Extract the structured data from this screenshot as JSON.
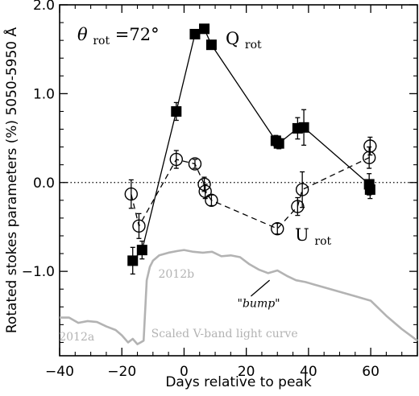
{
  "chart_data": {
    "type": "scatter",
    "xlabel": "Days relative to peak",
    "ylabel": "Rotated stokes parameters (%) 5050-5950 Å",
    "xlim": [
      -40,
      75
    ],
    "ylim": [
      -1.95,
      2.0
    ],
    "x_ticks": [
      "-40",
      "-20",
      "0",
      "20",
      "40",
      "60"
    ],
    "y_ticks": [
      "2.0",
      "1.0",
      "0.0",
      "-1.0"
    ],
    "theta_label": {
      "symbol": "θ",
      "subscript": "rot",
      "value": "=72°"
    },
    "zero_line": {
      "y": 0,
      "style": "dotted"
    },
    "series": [
      {
        "name": "Q",
        "subscript": "rot",
        "marker": "filled-square",
        "line": "solid",
        "color": "#000000",
        "points": [
          {
            "x": -16.5,
            "y": -0.88,
            "err": 0.15
          },
          {
            "x": -13.5,
            "y": -0.76,
            "err": 0.1
          },
          {
            "x": -2.5,
            "y": 0.8,
            "err": 0.1
          },
          {
            "x": 3.5,
            "y": 1.67,
            "err": 0.04
          },
          {
            "x": 6.5,
            "y": 1.73,
            "err": 0.04
          },
          {
            "x": 8.8,
            "y": 1.55,
            "err": 0.04
          },
          {
            "x": 29.5,
            "y": 0.47,
            "err": 0.06
          },
          {
            "x": 30.5,
            "y": 0.44,
            "err": 0.06
          },
          {
            "x": 36.5,
            "y": 0.61,
            "err": 0.12
          },
          {
            "x": 38.5,
            "y": 0.62,
            "err": 0.2
          },
          {
            "x": 59.5,
            "y": -0.02,
            "err": 0.12
          },
          {
            "x": 59.8,
            "y": -0.08,
            "err": 0.1
          }
        ]
      },
      {
        "name": "U",
        "subscript": "rot",
        "marker": "open-circle",
        "line": "dashed",
        "color": "#000000",
        "points": [
          {
            "x": -17.0,
            "y": -0.13,
            "err": 0.16
          },
          {
            "x": -14.5,
            "y": -0.49,
            "err": 0.14
          },
          {
            "x": -2.5,
            "y": 0.26,
            "err": 0.1
          },
          {
            "x": 3.5,
            "y": 0.21,
            "err": 0.05
          },
          {
            "x": 6.5,
            "y": -0.02,
            "err": 0.08
          },
          {
            "x": 6.8,
            "y": -0.1,
            "err": 0.08
          },
          {
            "x": 8.8,
            "y": -0.2,
            "err": 0.06
          },
          {
            "x": 30.0,
            "y": -0.52,
            "err": 0.06
          },
          {
            "x": 36.5,
            "y": -0.27,
            "err": 0.1
          },
          {
            "x": 38.0,
            "y": -0.08,
            "err": 0.2
          },
          {
            "x": 59.5,
            "y": 0.28,
            "err": 0.12
          },
          {
            "x": 59.8,
            "y": 0.41,
            "err": 0.1
          }
        ]
      }
    ],
    "light_curve": {
      "label": "Scaled V-band light curve",
      "color": "#b3b3b3",
      "x": [
        -40,
        -37,
        -34,
        -31,
        -28,
        -25,
        -22,
        -20,
        -18,
        -16.5,
        -15,
        -14,
        -13,
        -12,
        -11,
        -10,
        -8,
        -5,
        -2,
        0,
        3,
        6,
        9,
        12,
        15,
        18,
        21,
        24,
        27,
        30,
        33,
        36,
        39,
        42,
        45,
        50,
        55,
        60,
        65,
        70,
        75
      ],
      "y": [
        -1.52,
        -1.52,
        -1.58,
        -1.56,
        -1.57,
        -1.62,
        -1.66,
        -1.72,
        -1.8,
        -1.76,
        -1.82,
        -1.8,
        -1.78,
        -1.1,
        -0.95,
        -0.88,
        -0.82,
        -0.79,
        -0.77,
        -0.76,
        -0.78,
        -0.79,
        -0.78,
        -0.83,
        -0.82,
        -0.84,
        -0.92,
        -0.98,
        -1.02,
        -0.99,
        -1.05,
        -1.1,
        -1.12,
        -1.15,
        -1.18,
        -1.23,
        -1.28,
        -1.33,
        -1.5,
        -1.65,
        -1.78
      ]
    },
    "annotations": [
      {
        "text": "2012a",
        "x": -34.5,
        "y": -1.78,
        "color": "#b3b3b3"
      },
      {
        "text": "2012b",
        "x": -2.5,
        "y": -1.07,
        "color": "#b3b3b3"
      },
      {
        "text": "Scaled V-band light curve",
        "x": 13,
        "y": -1.74,
        "color": "#b3b3b3"
      },
      {
        "text": "\"bump\"",
        "x": 24,
        "y": -1.4,
        "color": "#000000"
      }
    ]
  }
}
